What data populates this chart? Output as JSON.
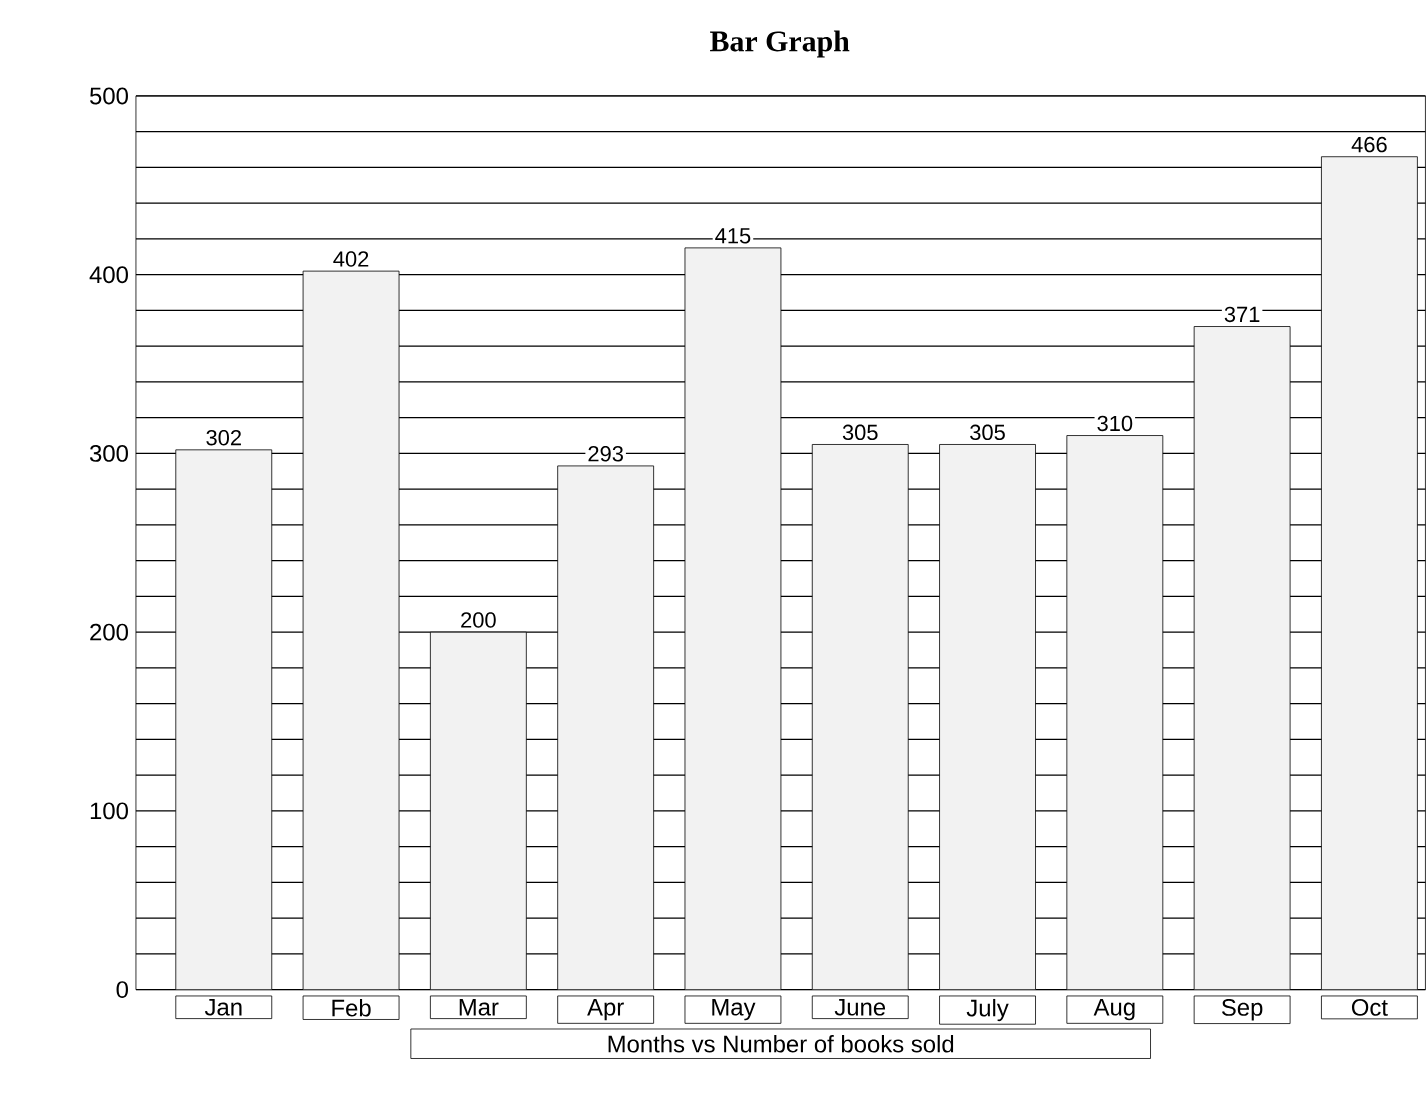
{
  "chart_data": {
    "type": "bar",
    "title": "Bar Graph",
    "xlabel": "Months vs Number of books sold",
    "categories": [
      "Jan",
      "Feb",
      "Mar",
      "Apr",
      "May",
      "June",
      "July",
      "Aug",
      "Sep",
      "Oct"
    ],
    "values": [
      302,
      402,
      200,
      293,
      415,
      305,
      305,
      310,
      371,
      466
    ],
    "color": "#f2f2f2",
    "ylim": [
      0,
      500
    ],
    "yticks": [
      0,
      100,
      200,
      300,
      400,
      500
    ],
    "grid": "y",
    "data_labels": true
  }
}
